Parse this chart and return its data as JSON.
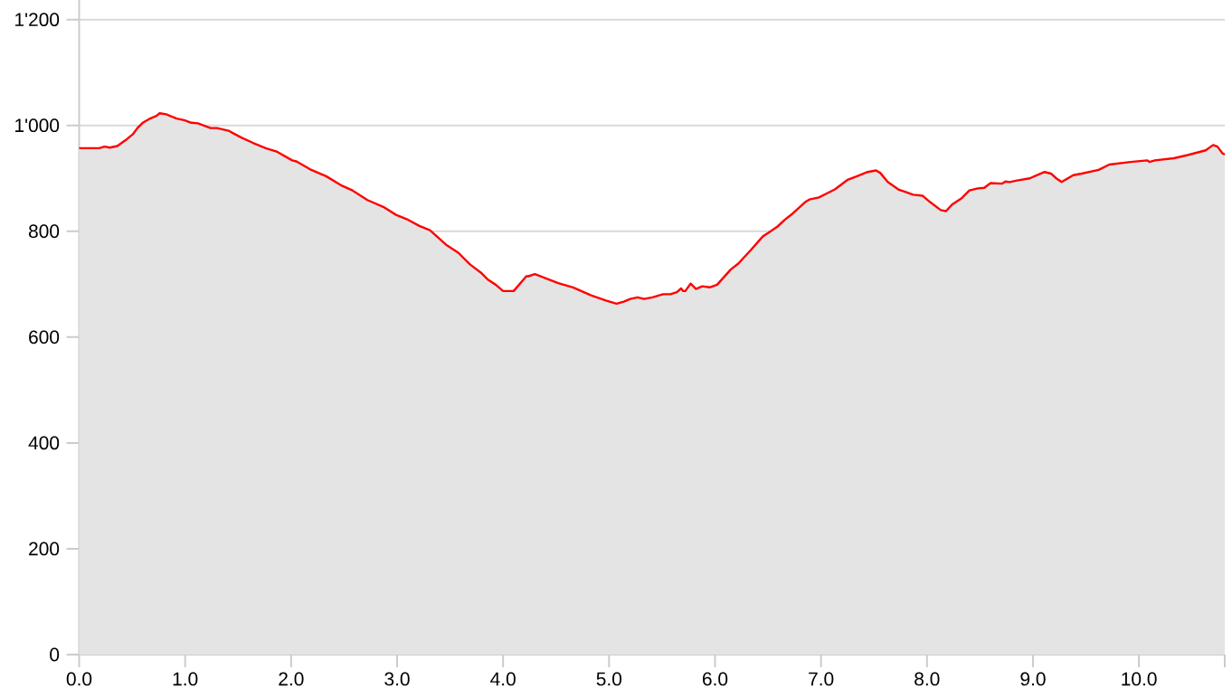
{
  "chart_data": {
    "type": "area",
    "x": [
      0,
      0.19,
      0.24,
      0.29,
      0.36,
      0.45,
      0.51,
      0.55,
      0.6,
      0.66,
      0.73,
      0.76,
      0.82,
      0.92,
      0.99,
      1.06,
      1.12,
      1.24,
      1.3,
      1.41,
      1.53,
      1.64,
      1.76,
      1.87,
      2.01,
      2.05,
      2.18,
      2.33,
      2.47,
      2.58,
      2.72,
      2.87,
      2.99,
      3.09,
      3.21,
      3.31,
      3.46,
      3.58,
      3.69,
      3.79,
      3.86,
      3.93,
      4.0,
      4.1,
      4.22,
      4.24,
      4.3,
      4.52,
      4.66,
      4.83,
      4.97,
      5.07,
      5.14,
      5.2,
      5.27,
      5.33,
      5.41,
      5.51,
      5.58,
      5.64,
      5.68,
      5.7,
      5.72,
      5.77,
      5.82,
      5.88,
      5.95,
      6.02,
      6.15,
      6.22,
      6.34,
      6.45,
      6.51,
      6.59,
      6.66,
      6.73,
      6.85,
      6.89,
      6.98,
      7.13,
      7.25,
      7.33,
      7.44,
      7.52,
      7.56,
      7.63,
      7.73,
      7.8,
      7.87,
      7.96,
      8.03,
      8.13,
      8.18,
      8.24,
      8.33,
      8.4,
      8.48,
      8.54,
      8.6,
      8.71,
      8.74,
      8.78,
      8.85,
      8.97,
      9.04,
      9.11,
      9.17,
      9.22,
      9.27,
      9.38,
      9.46,
      9.62,
      9.72,
      9.92,
      10.08,
      10.1,
      10.15,
      10.33,
      10.46,
      10.63,
      10.7,
      10.74,
      10.79,
      10.81
    ],
    "series": [
      {
        "color": "#ff0000",
        "values": [
          957,
          957,
          960,
          958,
          961,
          974,
          984,
          995,
          1005,
          1012,
          1018,
          1023,
          1021,
          1013,
          1010,
          1005,
          1004,
          995,
          995,
          990,
          977,
          967,
          957,
          950,
          934,
          932,
          917,
          904,
          887,
          877,
          859,
          846,
          831,
          823,
          810,
          802,
          775,
          759,
          737,
          722,
          708,
          699,
          687,
          687,
          715,
          715,
          719,
          702,
          694,
          679,
          669,
          663,
          667,
          672,
          675,
          672,
          675,
          681,
          681,
          685,
          692,
          687,
          687,
          701,
          691,
          696,
          694,
          699,
          728,
          739,
          765,
          790,
          798,
          809,
          822,
          833,
          855,
          860,
          864,
          879,
          897,
          903,
          912,
          915,
          910,
          893,
          879,
          874,
          869,
          867,
          855,
          840,
          838,
          851,
          863,
          877,
          881,
          882,
          891,
          890,
          894,
          893,
          896,
          900,
          906,
          912,
          909,
          900,
          893,
          906,
          909,
          916,
          926,
          931,
          934,
          931,
          934,
          938,
          944,
          953,
          963,
          960,
          947,
          945
        ]
      }
    ],
    "xlim": [
      0,
      10.81
    ],
    "ylim": [
      0,
      1237
    ],
    "xticks": [
      {
        "value": 0,
        "label": "0.0"
      },
      {
        "value": 1,
        "label": "1.0"
      },
      {
        "value": 2,
        "label": "2.0"
      },
      {
        "value": 3,
        "label": "3.0"
      },
      {
        "value": 4,
        "label": "4.0"
      },
      {
        "value": 5,
        "label": "5.0"
      },
      {
        "value": 6,
        "label": "6.0"
      },
      {
        "value": 7,
        "label": "7.0"
      },
      {
        "value": 8,
        "label": "8.0"
      },
      {
        "value": 9,
        "label": "9.0"
      },
      {
        "value": 10,
        "label": "10.0"
      },
      {
        "value": 10.81,
        "label": null
      }
    ],
    "yticks": [
      0,
      200,
      400,
      600,
      800,
      {
        "value": 1000,
        "label": "1'000"
      },
      {
        "value": 1200,
        "label": "1'200"
      }
    ],
    "grid": "y"
  }
}
